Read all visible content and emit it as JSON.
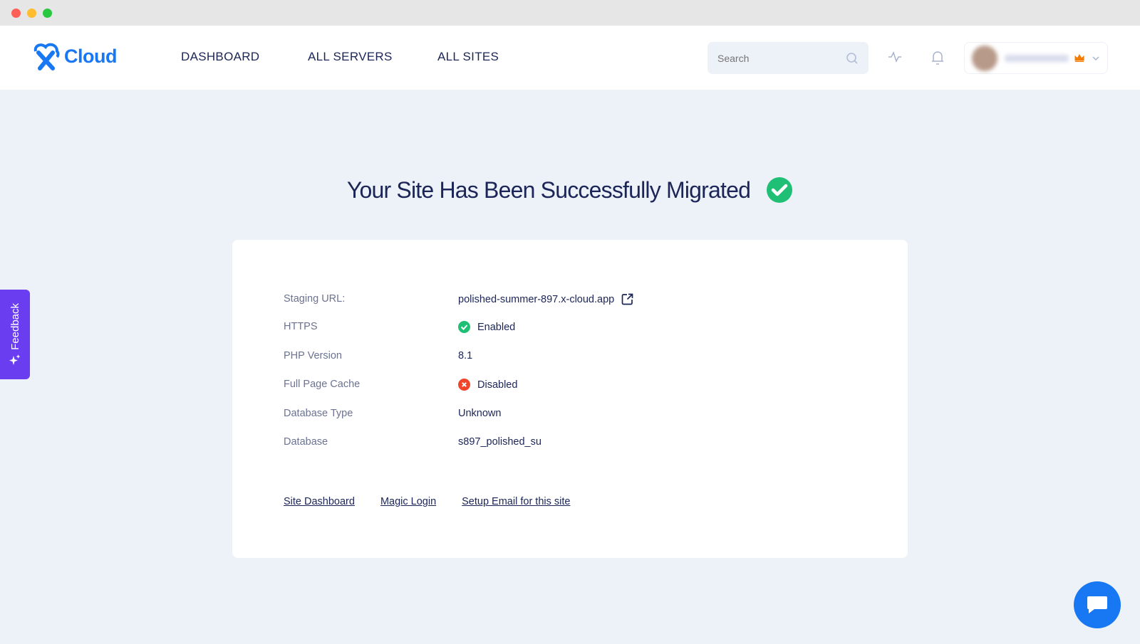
{
  "brand": {
    "name": "Cloud",
    "accent": "#1877f2"
  },
  "nav": {
    "items": [
      {
        "label": "DASHBOARD"
      },
      {
        "label": "ALL SERVERS"
      },
      {
        "label": "ALL SITES"
      }
    ]
  },
  "search": {
    "placeholder": "Search"
  },
  "page": {
    "title": "Your Site Has Been Successfully Migrated"
  },
  "details": [
    {
      "label": "Staging URL:",
      "value": "polished-summer-897.x-cloud.app",
      "icon": "external-link-icon"
    },
    {
      "label": "HTTPS",
      "value": "Enabled",
      "icon": "check-circle-icon",
      "color": "#1fbf75"
    },
    {
      "label": "PHP Version",
      "value": "8.1"
    },
    {
      "label": "Full Page Cache",
      "value": "Disabled",
      "icon": "x-circle-icon",
      "color": "#f0452b"
    },
    {
      "label": "Database Type",
      "value": "Unknown"
    },
    {
      "label": "Database",
      "value": "s897_polished_su"
    }
  ],
  "links": [
    {
      "label": "Site Dashboard"
    },
    {
      "label": "Magic Login"
    },
    {
      "label": "Setup Email for this site"
    }
  ],
  "feedback": {
    "label": "Feedback"
  }
}
